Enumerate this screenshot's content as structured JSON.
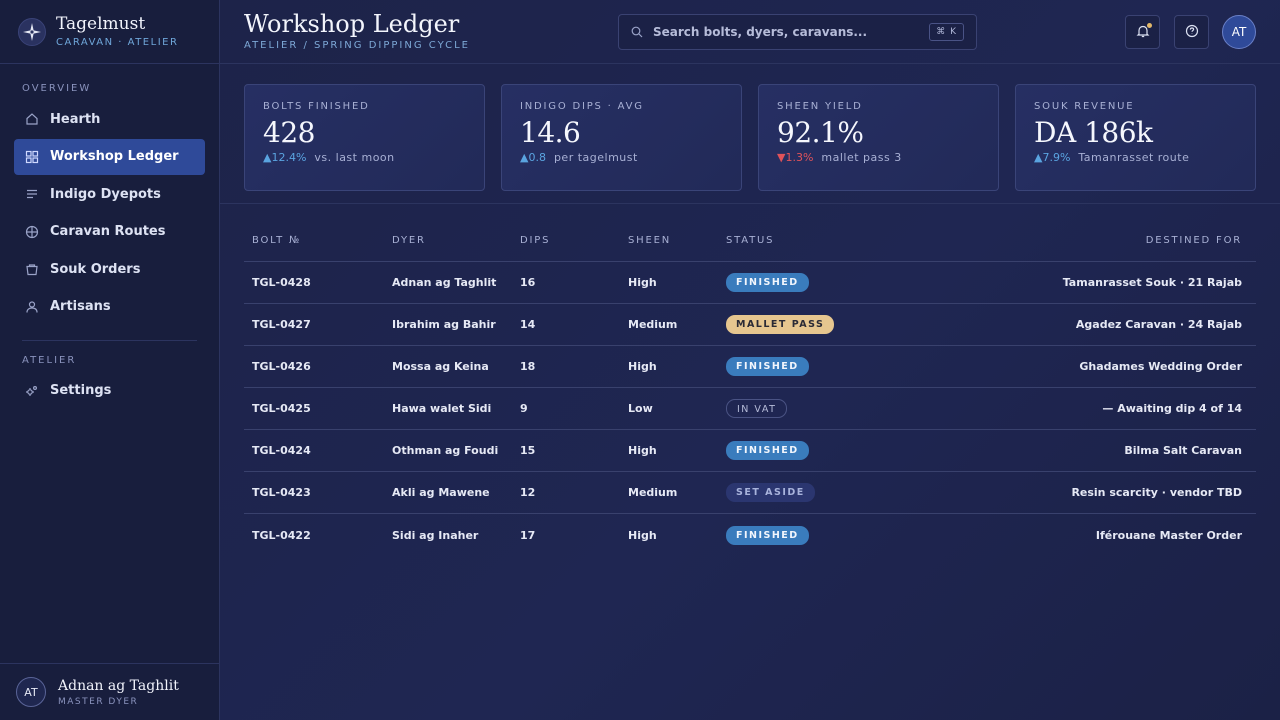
{
  "brand": {
    "name": "Tagelmust",
    "tagline": "CARAVAN · ATELIER"
  },
  "sidebar": {
    "overview_label": "OVERVIEW",
    "items": [
      {
        "label": "Hearth",
        "icon": "home-icon"
      },
      {
        "label": "Workshop Ledger",
        "icon": "grid-icon",
        "active": true
      },
      {
        "label": "Indigo Dyepots",
        "icon": "list-icon"
      },
      {
        "label": "Caravan Routes",
        "icon": "compass-icon"
      },
      {
        "label": "Souk Orders",
        "icon": "basket-icon"
      },
      {
        "label": "Artisans",
        "icon": "person-icon"
      }
    ],
    "atelier_label": "ATELIER",
    "settings_label": "Settings"
  },
  "user": {
    "initials": "AT",
    "name": "Adnan ag Taghlit",
    "role": "MASTER DYER"
  },
  "header": {
    "title": "Workshop Ledger",
    "breadcrumb": "ATELIER / SPRING DIPPING CYCLE",
    "search_placeholder": "Search bolts, dyers, caravans...",
    "search_shortcut": "⌘ K",
    "avatar_initials": "AT"
  },
  "kpis": [
    {
      "label": "BOLTS FINISHED",
      "value": "428",
      "delta": "▲12.4%",
      "direction": "up",
      "note": "vs. last moon"
    },
    {
      "label": "INDIGO DIPS · AVG",
      "value": "14.6",
      "delta": "▲0.8",
      "direction": "up",
      "note": "per tagelmust"
    },
    {
      "label": "SHEEN YIELD",
      "value": "92.1%",
      "delta": "▼1.3%",
      "direction": "down",
      "note": "mallet pass 3"
    },
    {
      "label": "SOUK REVENUE",
      "value": "DA 186k",
      "delta": "▲7.9%",
      "direction": "up",
      "note": "Tamanrasset route"
    }
  ],
  "table": {
    "columns": [
      "BOLT №",
      "DYER",
      "DIPS",
      "SHEEN",
      "STATUS",
      "DESTINED FOR"
    ],
    "rows": [
      {
        "bolt": "TGL-0428",
        "dyer": "Adnan ag Taghlit",
        "dips": "16",
        "sheen": "High",
        "status": "FINISHED",
        "status_type": "finished",
        "dest": "Tamanrasset Souk · 21 Rajab"
      },
      {
        "bolt": "TGL-0427",
        "dyer": "Ibrahim ag Bahir",
        "dips": "14",
        "sheen": "Medium",
        "status": "MALLET PASS",
        "status_type": "mallet",
        "dest": "Agadez Caravan · 24 Rajab"
      },
      {
        "bolt": "TGL-0426",
        "dyer": "Mossa ag Keina",
        "dips": "18",
        "sheen": "High",
        "status": "FINISHED",
        "status_type": "finished",
        "dest": "Ghadames Wedding Order"
      },
      {
        "bolt": "TGL-0425",
        "dyer": "Hawa walet Sidi",
        "dips": "9",
        "sheen": "Low",
        "status": "IN VAT",
        "status_type": "vat",
        "dest": "— Awaiting dip 4 of 14"
      },
      {
        "bolt": "TGL-0424",
        "dyer": "Othman ag Foudi",
        "dips": "15",
        "sheen": "High",
        "status": "FINISHED",
        "status_type": "finished",
        "dest": "Bilma Salt Caravan"
      },
      {
        "bolt": "TGL-0423",
        "dyer": "Akli ag Mawene",
        "dips": "12",
        "sheen": "Medium",
        "status": "SET ASIDE",
        "status_type": "aside",
        "dest": "Resin scarcity · vendor TBD"
      },
      {
        "bolt": "TGL-0422",
        "dyer": "Sidi ag Inaher",
        "dips": "17",
        "sheen": "High",
        "status": "FINISHED",
        "status_type": "finished",
        "dest": "Iférouane Master Order"
      }
    ]
  },
  "colors": {
    "accent": "#2f4a99",
    "finished": "#3a7cbd",
    "mallet": "#e6c68f",
    "up": "#5aa4e0",
    "down": "#e0535a"
  }
}
